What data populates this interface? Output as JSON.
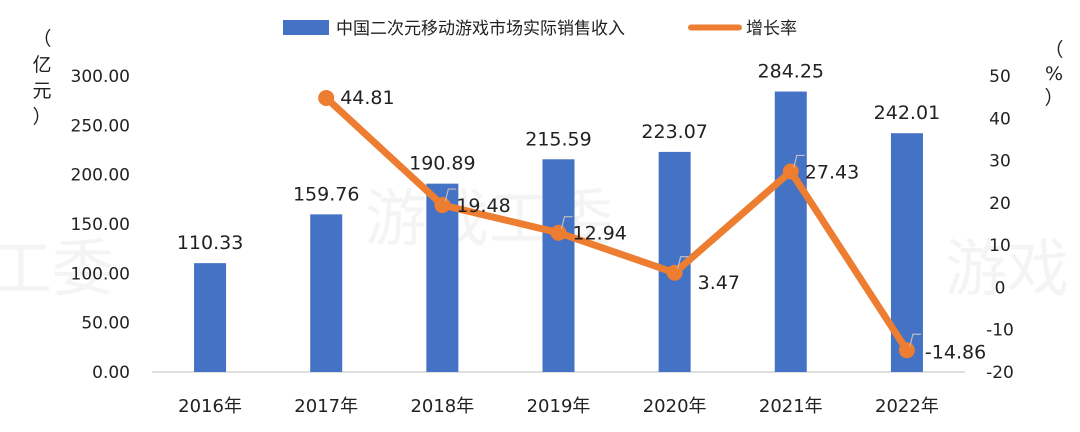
{
  "watermark": {
    "left": "工委",
    "center": "游戏工委",
    "right": "游戏"
  },
  "chart_data": {
    "type": "bar",
    "categories": [
      "2016年",
      "2017年",
      "2018年",
      "2019年",
      "2020年",
      "2021年",
      "2022年"
    ],
    "series": [
      {
        "name": "中国二次元移动游戏市场实际销售收入",
        "type": "bar",
        "axis": "left",
        "color": "#4472C4",
        "values": [
          110.33,
          159.76,
          190.89,
          215.59,
          223.07,
          284.25,
          242.01
        ]
      },
      {
        "name": "增长率",
        "type": "line",
        "axis": "right",
        "color": "#ED7D31",
        "values": [
          null,
          44.81,
          19.48,
          12.94,
          3.47,
          27.43,
          -14.86
        ]
      }
    ],
    "left_axis": {
      "unit_chars": [
        "（",
        "亿",
        "元",
        "）"
      ],
      "ylim": [
        0,
        300
      ],
      "ticks": [
        "0.00",
        "50.00",
        "100.00",
        "150.00",
        "200.00",
        "250.00",
        "300.00"
      ]
    },
    "right_axis": {
      "unit_chars": [
        "（",
        "%",
        "）"
      ],
      "ylim": [
        -20,
        50
      ],
      "ticks": [
        "-20",
        "-10",
        "0",
        "10",
        "20",
        "30",
        "40",
        "50"
      ]
    },
    "legend_position": "top",
    "grid": false
  }
}
